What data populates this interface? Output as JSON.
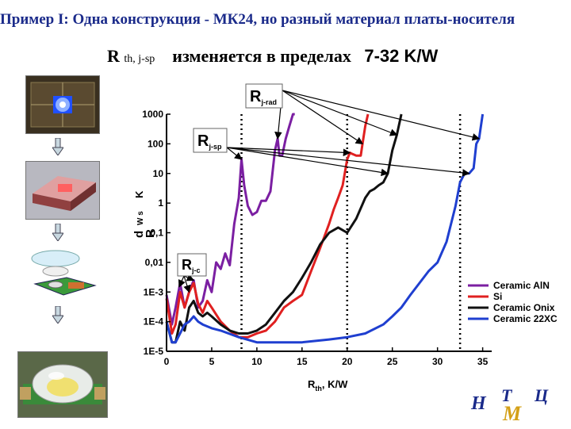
{
  "slide": {
    "title": "Пример I: Одна конструкция - МК24, но разный материал платы-носителя",
    "subtitle_symbol": "R",
    "subtitle_subscript": "th, j-sp",
    "subtitle_text": "изменяется в пределах",
    "subtitle_range": "7-32 K/W"
  },
  "logo": {
    "letters": [
      "Н",
      "Т",
      "Ц",
      "М"
    ],
    "color_main": "#1a2a8a",
    "color_accent": "#d4a017"
  },
  "chart_data": {
    "type": "line",
    "title": "",
    "xlabel": "Rth, K/W",
    "ylabel": "d R / d ... W2s2 K-2",
    "xlim": [
      0,
      36
    ],
    "ylim": [
      1e-05,
      1000
    ],
    "y_scale": "log",
    "x_ticks": [
      0,
      5,
      10,
      15,
      20,
      25,
      30,
      35
    ],
    "x_tick_labels": [
      "0",
      "5",
      "10",
      "15",
      "20",
      "25",
      "30",
      "35"
    ],
    "y_ticks": [
      1e-05,
      0.0001,
      0.001,
      0.01,
      0.1,
      1,
      10,
      100,
      1000
    ],
    "y_tick_labels": [
      "1E-5",
      "1E-4",
      "1E-3",
      "0,01",
      "0,1",
      "1",
      "10",
      "100",
      "1000"
    ],
    "legend_position": "right",
    "annotations": [
      {
        "main": "R",
        "sub": "j-rad",
        "x": 11.5,
        "y": 500
      },
      {
        "main": "R",
        "sub": "j-sp",
        "x": 3.5,
        "y": 100
      },
      {
        "main": "R",
        "sub": "j-c",
        "x": 1.5,
        "y": 0.015
      }
    ],
    "vertical_markers": [
      8.3,
      20.0,
      32.5
    ],
    "series": [
      {
        "name": "Ceramic AlN",
        "color": "#7b1fa2",
        "x": [
          0,
          0.6,
          1.0,
          1.5,
          2.0,
          2.5,
          3.0,
          3.5,
          4.0,
          4.5,
          5.0,
          5.5,
          6.0,
          6.5,
          7.0,
          7.5,
          8.0,
          8.3,
          8.6,
          9.0,
          9.5,
          10.0,
          10.5,
          11.0,
          11.5,
          12.0,
          12.3,
          12.5,
          12.8,
          13.2,
          13.6,
          14.0,
          14.2
        ],
        "y": [
          0.0008,
          8e-05,
          0.0003,
          0.002,
          0.0003,
          0.001,
          0.0025,
          0.0003,
          0.0005,
          0.0025,
          0.001,
          0.01,
          0.006,
          0.02,
          0.008,
          0.2,
          1.5,
          30,
          4,
          0.8,
          0.4,
          0.5,
          1.2,
          1.2,
          2.5,
          60,
          150,
          40,
          40,
          150,
          400,
          1000,
          1000
        ]
      },
      {
        "name": "Si",
        "color": "#e02020",
        "x": [
          0,
          0.6,
          1.0,
          1.5,
          2.0,
          2.5,
          3.0,
          3.5,
          4.0,
          4.5,
          5.0,
          6.0,
          7.0,
          8.0,
          9.0,
          10.0,
          11.0,
          12.0,
          13.0,
          14.0,
          15.0,
          16.0,
          17.0,
          18.0,
          18.5,
          19.0,
          19.5,
          20.0,
          20.3,
          20.6,
          21.0,
          21.5,
          21.7,
          22.0,
          22.3
        ],
        "y": [
          0.0006,
          4e-05,
          8e-05,
          0.001,
          0.0003,
          0.001,
          0.002,
          0.0004,
          0.0002,
          0.0005,
          0.0003,
          0.0001,
          5e-05,
          3e-05,
          3e-05,
          4e-05,
          5e-05,
          0.0001,
          0.0003,
          0.0005,
          0.0008,
          0.005,
          0.03,
          0.2,
          0.6,
          1.5,
          4,
          30,
          50,
          45,
          40,
          40,
          100,
          400,
          1000
        ]
      },
      {
        "name": "Ceramic Onix",
        "color": "#111111",
        "x": [
          0,
          0.6,
          1.0,
          1.5,
          2.0,
          2.5,
          3.0,
          3.5,
          4.0,
          4.5,
          5.0,
          6.0,
          7.0,
          8.0,
          9.0,
          10.0,
          11.0,
          12.0,
          13.0,
          14.0,
          15.0,
          16.0,
          17.0,
          18.0,
          19.0,
          20.0,
          21.0,
          22.0,
          22.5,
          23.0,
          23.5,
          24.0,
          24.5,
          25.0,
          25.5,
          26.0
        ],
        "y": [
          0.0001,
          2e-05,
          2e-05,
          0.0001,
          5e-05,
          0.0003,
          0.0005,
          0.0002,
          0.00015,
          0.0002,
          0.00015,
          8e-05,
          5e-05,
          4e-05,
          4e-05,
          5e-05,
          8e-05,
          0.0002,
          0.0005,
          0.001,
          0.003,
          0.01,
          0.04,
          0.1,
          0.15,
          0.1,
          0.3,
          1.5,
          2.5,
          3,
          4,
          5,
          10,
          60,
          200,
          1000
        ]
      },
      {
        "name": "Ceramic 22XC",
        "color": "#1f3fd0",
        "x": [
          0,
          0.6,
          1.0,
          1.5,
          2.0,
          2.5,
          3.0,
          3.5,
          4.0,
          5.0,
          6.0,
          8.0,
          10.0,
          12.0,
          15.0,
          18.0,
          20.0,
          22.0,
          24.0,
          25.0,
          26.0,
          27.0,
          28.0,
          29.0,
          30.0,
          31.0,
          32.0,
          32.5,
          33.0,
          33.5,
          34.0,
          34.3,
          34.6,
          35.0
        ],
        "y": [
          0.0001,
          2e-05,
          2e-05,
          4e-05,
          8e-05,
          0.0001,
          0.00015,
          0.0001,
          8e-05,
          6e-05,
          5e-05,
          3e-05,
          2e-05,
          2e-05,
          2e-05,
          2.5e-05,
          3e-05,
          4e-05,
          8e-05,
          0.00015,
          0.0003,
          0.0008,
          0.002,
          0.005,
          0.01,
          0.05,
          0.8,
          5,
          10,
          10,
          15,
          100,
          150,
          1000
        ]
      }
    ]
  }
}
